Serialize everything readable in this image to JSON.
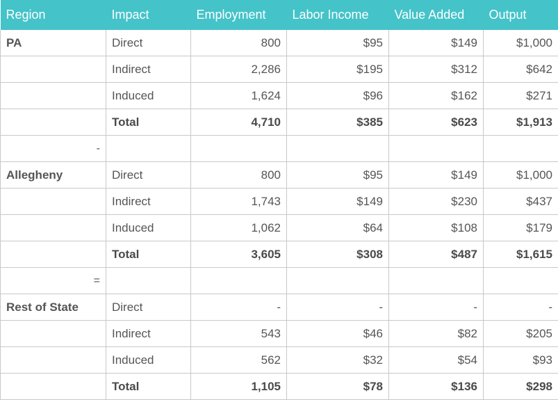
{
  "table": {
    "headers": [
      "Region",
      "Impact",
      "Employment",
      "Labor Income",
      "Value Added",
      "Output"
    ],
    "rows": [
      {
        "type": "data",
        "region": "PA",
        "impact": "Direct",
        "employment": "800",
        "labor_income": "$95",
        "value_added": "$149",
        "output": "$1,000"
      },
      {
        "type": "data",
        "region": "",
        "impact": "Indirect",
        "employment": "2,286",
        "labor_income": "$195",
        "value_added": "$312",
        "output": "$642"
      },
      {
        "type": "data",
        "region": "",
        "impact": "Induced",
        "employment": "1,624",
        "labor_income": "$96",
        "value_added": "$162",
        "output": "$271"
      },
      {
        "type": "total",
        "region": "",
        "impact": "Total",
        "employment": "4,710",
        "labor_income": "$385",
        "value_added": "$623",
        "output": "$1,913"
      },
      {
        "type": "separator",
        "region": "-",
        "impact": "",
        "employment": "",
        "labor_income": "",
        "value_added": "",
        "output": ""
      },
      {
        "type": "data",
        "region": "Allegheny",
        "impact": "Direct",
        "employment": "800",
        "labor_income": "$95",
        "value_added": "$149",
        "output": "$1,000"
      },
      {
        "type": "data",
        "region": "",
        "impact": "Indirect",
        "employment": "1,743",
        "labor_income": "$149",
        "value_added": "$230",
        "output": "$437"
      },
      {
        "type": "data",
        "region": "",
        "impact": "Induced",
        "employment": "1,062",
        "labor_income": "$64",
        "value_added": "$108",
        "output": "$179"
      },
      {
        "type": "total",
        "region": "",
        "impact": "Total",
        "employment": "3,605",
        "labor_income": "$308",
        "value_added": "$487",
        "output": "$1,615"
      },
      {
        "type": "separator",
        "region": "=",
        "impact": "",
        "employment": "",
        "labor_income": "",
        "value_added": "",
        "output": ""
      },
      {
        "type": "data",
        "region": "Rest of State",
        "impact": "Direct",
        "employment": "-",
        "labor_income": "-",
        "value_added": "-",
        "output": "-"
      },
      {
        "type": "data",
        "region": "",
        "impact": "Indirect",
        "employment": "543",
        "labor_income": "$46",
        "value_added": "$82",
        "output": "$205"
      },
      {
        "type": "data",
        "region": "",
        "impact": "Induced",
        "employment": "562",
        "labor_income": "$32",
        "value_added": "$54",
        "output": "$93"
      },
      {
        "type": "total",
        "region": "",
        "impact": "Total",
        "employment": "1,105",
        "labor_income": "$78",
        "value_added": "$136",
        "output": "$298"
      }
    ]
  },
  "colors": {
    "header_bg": "#44c3c9",
    "header_text": "#ffffff",
    "cell_text": "#555555",
    "border": "#c8c8c8"
  }
}
